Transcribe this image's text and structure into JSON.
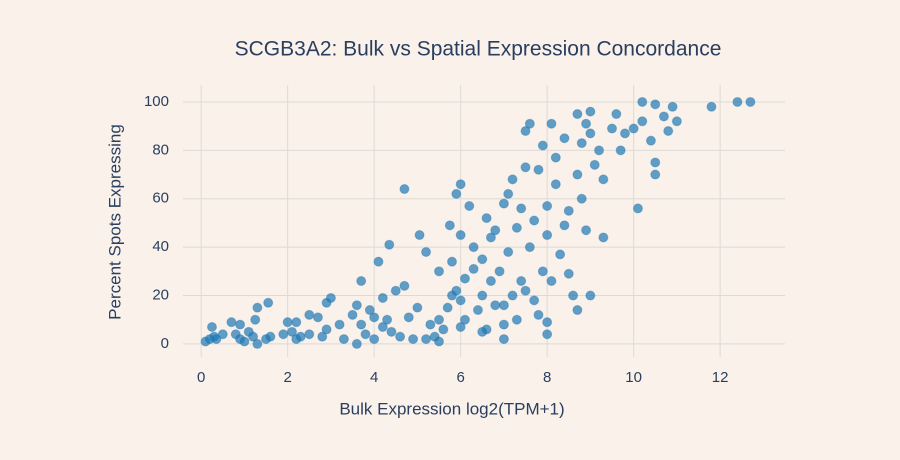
{
  "chart_data": {
    "type": "scatter",
    "title": "SCGB3A2: Bulk vs Spatial Expression Concordance",
    "x_label": "Bulk Expression log2(TPM+1)",
    "y_label": "Percent Spots Expressing",
    "color": "#1f77b4",
    "grid": true,
    "xlim": [
      -0.42,
      13.5
    ],
    "ylim": [
      -5.4,
      107
    ],
    "xticks": [
      0,
      2,
      4,
      6,
      8,
      10,
      12
    ],
    "yticks": [
      0,
      20,
      40,
      60,
      80,
      100
    ],
    "x": [
      0.1,
      0.2,
      0.25,
      0.3,
      0.35,
      0.5,
      0.7,
      0.8,
      0.9,
      0.9,
      1.0,
      1.1,
      1.2,
      1.25,
      1.3,
      1.3,
      1.5,
      1.55,
      1.6,
      1.9,
      2.0,
      2.1,
      2.2,
      2.3,
      2.5,
      2.5,
      2.7,
      2.8,
      2.9,
      2.9,
      3.0,
      3.2,
      3.5,
      3.6,
      3.6,
      3.7,
      3.7,
      3.8,
      3.9,
      4.0,
      4.0,
      4.1,
      4.2,
      4.2,
      4.3,
      4.35,
      4.4,
      4.5,
      4.6,
      4.7,
      4.7,
      4.8,
      4.9,
      5.0,
      5.05,
      5.2,
      5.2,
      5.3,
      5.4,
      5.5,
      5.5,
      5.6,
      5.7,
      5.75,
      5.8,
      5.8,
      5.9,
      5.9,
      6.0,
      6.0,
      6.0,
      6.1,
      6.1,
      6.2,
      6.3,
      6.3,
      6.4,
      6.5,
      6.5,
      6.6,
      6.7,
      6.7,
      6.8,
      6.8,
      6.9,
      7.0,
      7.0,
      7.1,
      7.1,
      7.2,
      7.2,
      7.3,
      7.3,
      7.4,
      7.4,
      7.5,
      7.5,
      7.6,
      7.6,
      7.7,
      7.7,
      7.8,
      7.8,
      7.9,
      7.9,
      8.0,
      8.0,
      8.1,
      8.1,
      8.2,
      8.2,
      8.3,
      8.4,
      8.4,
      8.5,
      8.5,
      8.6,
      8.7,
      8.7,
      8.7,
      8.8,
      8.8,
      8.9,
      8.9,
      9.0,
      9.0,
      9.0,
      9.1,
      9.2,
      9.3,
      9.3,
      9.5,
      9.6,
      9.7,
      9.8,
      10.0,
      10.1,
      10.2,
      10.2,
      10.4,
      10.5,
      10.5,
      10.5,
      10.7,
      10.8,
      10.9,
      11.0,
      11.8,
      12.4,
      12.7,
      5.5,
      6.0,
      6.6,
      7.0,
      8.0,
      8.0,
      3.3,
      2.2,
      6.5,
      7.0,
      7.5
    ],
    "values": [
      1,
      2,
      7,
      3,
      2,
      4,
      9,
      4,
      8,
      2,
      1,
      5,
      3,
      10,
      15,
      0,
      2,
      17,
      3,
      4,
      9,
      5,
      9,
      3,
      4,
      12,
      11,
      3,
      6,
      17,
      19,
      8,
      12,
      16,
      0,
      26,
      8,
      4,
      14,
      11,
      2,
      34,
      7,
      19,
      10,
      41,
      5,
      22,
      3,
      24,
      64,
      11,
      2,
      15,
      45,
      38,
      2,
      8,
      3,
      30,
      10,
      6,
      15,
      49,
      20,
      34,
      22,
      62,
      18,
      66,
      45,
      27,
      10,
      57,
      31,
      40,
      14,
      35,
      5,
      52,
      44,
      26,
      47,
      16,
      30,
      58,
      8,
      62,
      38,
      20,
      68,
      48,
      10,
      56,
      26,
      73,
      88,
      91,
      40,
      51,
      18,
      72,
      12,
      30,
      82,
      45,
      57,
      91,
      26,
      77,
      66,
      37,
      49,
      85,
      55,
      29,
      20,
      95,
      70,
      14,
      60,
      83,
      91,
      47,
      96,
      87,
      20,
      74,
      80,
      68,
      44,
      89,
      95,
      80,
      87,
      89,
      56,
      92,
      100,
      84,
      75,
      99,
      70,
      94,
      88,
      98,
      92,
      98,
      100,
      100,
      1,
      7,
      6,
      2,
      4,
      9,
      2,
      2,
      20,
      16,
      22
    ]
  }
}
